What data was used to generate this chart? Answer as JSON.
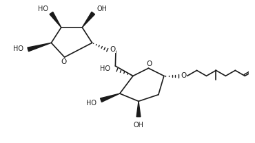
{
  "bg": "#ffffff",
  "lc": "#1a1a1a",
  "lw": 1.2,
  "fs": 7.0,
  "xlim": [
    -0.5,
    10.5
  ],
  "ylim": [
    -0.6,
    5.8
  ]
}
